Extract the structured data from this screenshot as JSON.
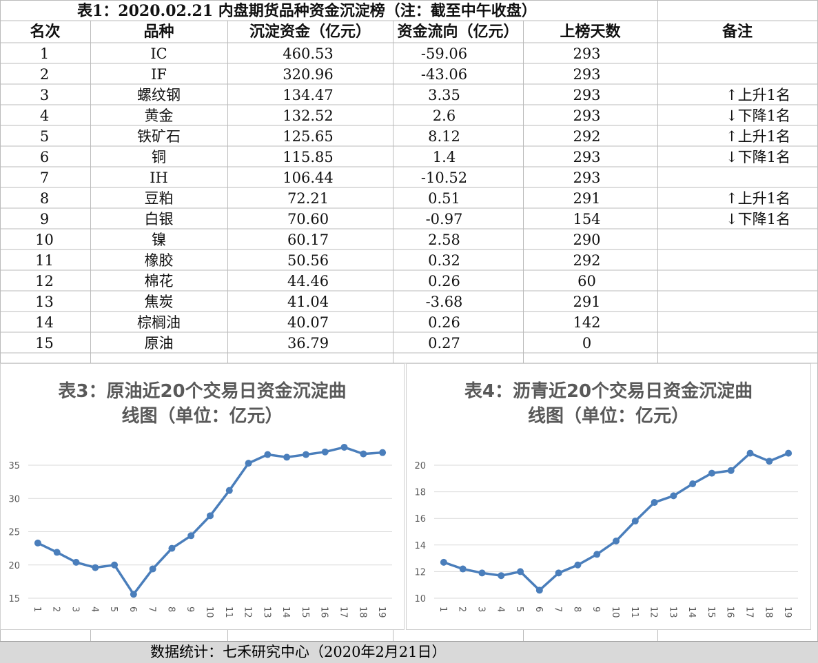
{
  "table": {
    "title": "表1：2020.02.21 内盘期货品种资金沉淀榜（注：截至中午收盘）",
    "header": [
      "名次",
      "品种",
      "沉淀资金（亿元）",
      "资金流向（亿元）",
      "上榜天数",
      "备注"
    ],
    "rows": [
      [
        "1",
        "IC",
        "460.53",
        "-59.06",
        "293",
        ""
      ],
      [
        "2",
        "IF",
        "320.96",
        "-43.06",
        "293",
        ""
      ],
      [
        "3",
        "螺纹钢",
        "134.47",
        "3.35",
        "293",
        "↑上升1名"
      ],
      [
        "4",
        "黄金",
        "132.52",
        "2.6",
        "293",
        "↓下降1名"
      ],
      [
        "5",
        "铁矿石",
        "125.65",
        "8.12",
        "292",
        "↑上升1名"
      ],
      [
        "6",
        "铜",
        "115.85",
        "1.4",
        "293",
        "↓下降1名"
      ],
      [
        "7",
        "IH",
        "106.44",
        "-10.52",
        "293",
        ""
      ],
      [
        "8",
        "豆粕",
        "72.21",
        "0.51",
        "291",
        "↑上升1名"
      ],
      [
        "9",
        "白银",
        "70.60",
        "-0.97",
        "154",
        "↓下降1名"
      ],
      [
        "10",
        "镍",
        "60.17",
        "2.58",
        "290",
        ""
      ],
      [
        "11",
        "橡胶",
        "50.56",
        "0.32",
        "292",
        ""
      ],
      [
        "12",
        "棉花",
        "44.46",
        "0.26",
        "60",
        ""
      ],
      [
        "13",
        "焦炭",
        "41.04",
        "-3.68",
        "291",
        ""
      ],
      [
        "14",
        "棕榈油",
        "40.07",
        "0.26",
        "142",
        ""
      ],
      [
        "15",
        "原油",
        "36.79",
        "0.27",
        "0",
        ""
      ]
    ]
  },
  "chart_data": [
    {
      "type": "line",
      "title": [
        "表3：原油近20个交易日资金沉淀曲",
        "线图（单位：亿元）"
      ],
      "categories": [
        "1",
        "2",
        "3",
        "4",
        "5",
        "6",
        "7",
        "8",
        "9",
        "10",
        "11",
        "12",
        "13",
        "14",
        "15",
        "16",
        "17",
        "18",
        "19"
      ],
      "values": [
        23.3,
        21.9,
        20.4,
        19.6,
        20.0,
        15.6,
        19.4,
        22.5,
        24.4,
        27.4,
        31.2,
        35.3,
        36.6,
        36.2,
        36.6,
        37.0,
        37.7,
        36.7,
        36.9
      ],
      "color": "#4a7ebb",
      "ylim": [
        15,
        38.5
      ],
      "yticks": [
        15,
        20,
        25,
        30,
        35
      ],
      "grid": true
    },
    {
      "type": "line",
      "title": [
        "表4：沥青近20个交易日资金沉淀曲",
        "线图（单位：亿元）"
      ],
      "categories": [
        "1",
        "2",
        "3",
        "4",
        "5",
        "6",
        "7",
        "8",
        "9",
        "10",
        "11",
        "12",
        "13",
        "14",
        "15",
        "16",
        "17",
        "18",
        "19"
      ],
      "values": [
        12.7,
        12.2,
        11.9,
        11.7,
        12.0,
        10.6,
        11.9,
        12.5,
        13.3,
        14.3,
        15.8,
        17.2,
        17.7,
        18.6,
        19.4,
        19.6,
        20.9,
        20.3,
        20.9
      ],
      "color": "#4a7ebb",
      "ylim": [
        10,
        21.5
      ],
      "yticks": [
        10,
        12,
        14,
        16,
        18,
        20
      ],
      "grid": true
    }
  ],
  "footer": "数据统计：七禾研究中心（2020年2月21日）"
}
